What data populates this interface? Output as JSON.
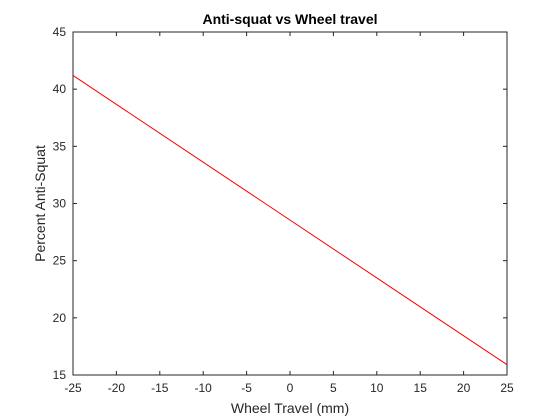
{
  "chart_data": {
    "type": "line",
    "title": "Anti-squat vs Wheel travel",
    "xlabel": "Wheel Travel (mm)",
    "ylabel": "Percent Anti-Squat",
    "xlim": [
      -25,
      25
    ],
    "ylim": [
      15,
      45
    ],
    "xticks": [
      -25,
      -20,
      -15,
      -10,
      -5,
      0,
      5,
      10,
      15,
      20,
      25
    ],
    "yticks": [
      15,
      20,
      25,
      30,
      35,
      40,
      45
    ],
    "grid": false,
    "box": true,
    "series": [
      {
        "color": "#ff0000",
        "x": [
          -25,
          25
        ],
        "y": [
          41.2,
          15.9
        ]
      }
    ]
  }
}
